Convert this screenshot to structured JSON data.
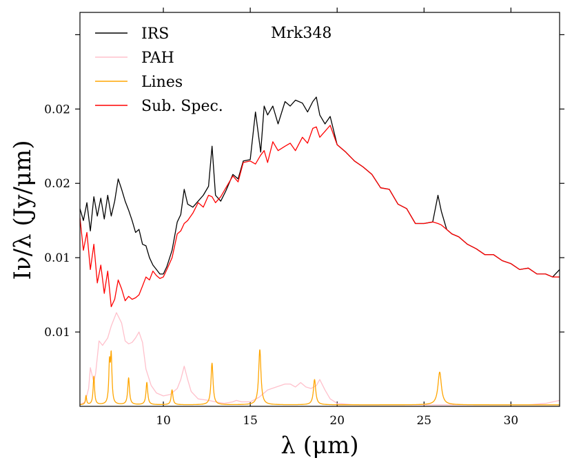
{
  "chart_data": {
    "type": "line",
    "title": "Mrk348",
    "xlabel": "λ (μm)",
    "ylabel": "Iν/λ (Jy/μm)",
    "xlim": [
      5.2,
      32.8
    ],
    "ylim": [
      0.0,
      0.0265
    ],
    "xticks": [
      10,
      15,
      20,
      25,
      30
    ],
    "xtick_labels": [
      "10",
      "15",
      "20",
      "25",
      "30"
    ],
    "yticks": [
      0.005,
      0.01,
      0.015,
      0.02,
      0.025
    ],
    "ytick_labels": [
      "0.01",
      "0.01",
      "0.02",
      "0.02"
    ],
    "ytick_label_values": [
      0.005,
      0.01,
      0.015,
      0.02
    ],
    "legend": {
      "position": "top-left",
      "entries": [
        "IRS",
        "PAH",
        "Lines",
        "Sub. Spec."
      ]
    },
    "colors": {
      "IRS": "#000000",
      "PAH": "#ffc0cb",
      "Lines": "#ffa500",
      "Sub. Spec.": "#ff0000"
    },
    "series": [
      {
        "name": "IRS",
        "x": [
          5.2,
          5.4,
          5.6,
          5.8,
          6.0,
          6.2,
          6.4,
          6.6,
          6.8,
          7.0,
          7.2,
          7.4,
          7.6,
          7.8,
          8.0,
          8.2,
          8.4,
          8.6,
          8.8,
          9.0,
          9.2,
          9.4,
          9.6,
          9.8,
          10.0,
          10.2,
          10.5,
          10.8,
          11.0,
          11.2,
          11.4,
          11.7,
          12.0,
          12.3,
          12.6,
          12.8,
          13.0,
          13.3,
          13.6,
          14.0,
          14.3,
          14.6,
          15.0,
          15.3,
          15.6,
          15.8,
          16.0,
          16.3,
          16.6,
          17.0,
          17.3,
          17.6,
          18.0,
          18.3,
          18.6,
          18.8,
          19.0,
          19.3,
          19.6,
          20.0,
          20.5,
          21.0,
          21.5,
          22.0,
          22.5,
          23.0,
          23.5,
          24.0,
          24.5,
          25.0,
          25.5,
          25.8,
          26.0,
          26.3,
          26.6,
          27.0,
          27.5,
          28.0,
          28.5,
          29.0,
          29.5,
          30.0,
          30.5,
          31.0,
          31.5,
          32.0,
          32.4,
          32.8
        ],
        "values": [
          0.0133,
          0.0125,
          0.0137,
          0.0118,
          0.0141,
          0.0128,
          0.014,
          0.0126,
          0.0142,
          0.0128,
          0.0138,
          0.0153,
          0.0146,
          0.0138,
          0.0132,
          0.0125,
          0.0117,
          0.0119,
          0.0109,
          0.0108,
          0.01,
          0.0095,
          0.0092,
          0.0089,
          0.0089,
          0.0094,
          0.0105,
          0.0124,
          0.0129,
          0.0146,
          0.0136,
          0.0134,
          0.0138,
          0.0142,
          0.0148,
          0.0175,
          0.0142,
          0.0138,
          0.0145,
          0.0156,
          0.0153,
          0.0165,
          0.0166,
          0.0198,
          0.0171,
          0.0202,
          0.0196,
          0.0202,
          0.019,
          0.0205,
          0.0202,
          0.0206,
          0.0204,
          0.0198,
          0.0205,
          0.0208,
          0.0196,
          0.019,
          0.0195,
          0.0176,
          0.0171,
          0.0165,
          0.0161,
          0.0156,
          0.0147,
          0.0146,
          0.0136,
          0.0133,
          0.0123,
          0.0123,
          0.0124,
          0.0142,
          0.0131,
          0.0119,
          0.0116,
          0.0114,
          0.0109,
          0.0106,
          0.0102,
          0.0102,
          0.0098,
          0.0096,
          0.0092,
          0.0093,
          0.0089,
          0.0089,
          0.0087,
          0.0092
        ]
      },
      {
        "name": "Sub. Spec.",
        "x": [
          5.2,
          5.4,
          5.6,
          5.8,
          6.0,
          6.2,
          6.4,
          6.6,
          6.8,
          7.0,
          7.2,
          7.4,
          7.6,
          7.8,
          8.0,
          8.2,
          8.4,
          8.6,
          8.8,
          9.0,
          9.2,
          9.4,
          9.6,
          9.8,
          10.0,
          10.2,
          10.5,
          10.8,
          11.0,
          11.2,
          11.4,
          11.7,
          12.0,
          12.3,
          12.6,
          12.8,
          13.0,
          13.3,
          13.6,
          14.0,
          14.3,
          14.6,
          15.0,
          15.3,
          15.6,
          15.8,
          16.0,
          16.3,
          16.6,
          17.0,
          17.3,
          17.6,
          18.0,
          18.3,
          18.6,
          18.8,
          19.0,
          19.3,
          19.6,
          20.0,
          20.5,
          21.0,
          21.5,
          22.0,
          22.5,
          23.0,
          23.5,
          24.0,
          24.5,
          25.0,
          25.5,
          25.8,
          26.0,
          26.3,
          26.6,
          27.0,
          27.5,
          28.0,
          28.5,
          29.0,
          29.5,
          30.0,
          30.5,
          31.0,
          31.5,
          32.0,
          32.4,
          32.8
        ],
        "values": [
          0.0127,
          0.0105,
          0.0117,
          0.0092,
          0.0109,
          0.0083,
          0.0095,
          0.0076,
          0.0091,
          0.0067,
          0.0072,
          0.0085,
          0.0079,
          0.0071,
          0.0074,
          0.0072,
          0.0073,
          0.0075,
          0.0081,
          0.0087,
          0.0085,
          0.0091,
          0.0088,
          0.0086,
          0.0087,
          0.0092,
          0.01,
          0.0116,
          0.0118,
          0.0123,
          0.0125,
          0.013,
          0.0137,
          0.0134,
          0.0142,
          0.0141,
          0.0137,
          0.0141,
          0.0147,
          0.0155,
          0.0151,
          0.0164,
          0.0165,
          0.0163,
          0.0169,
          0.0172,
          0.0164,
          0.0178,
          0.0172,
          0.0175,
          0.0177,
          0.0172,
          0.0181,
          0.0177,
          0.0187,
          0.0188,
          0.0181,
          0.0185,
          0.0189,
          0.0176,
          0.0171,
          0.0165,
          0.0161,
          0.0156,
          0.0147,
          0.0146,
          0.0136,
          0.0133,
          0.0123,
          0.0123,
          0.0124,
          0.0123,
          0.0122,
          0.0119,
          0.0116,
          0.0114,
          0.0109,
          0.0106,
          0.0102,
          0.0102,
          0.0098,
          0.0096,
          0.0092,
          0.0093,
          0.0089,
          0.0089,
          0.0087,
          0.0087
        ]
      },
      {
        "name": "PAH",
        "x": [
          5.2,
          5.5,
          5.7,
          5.8,
          6.0,
          6.1,
          6.2,
          6.3,
          6.5,
          6.8,
          7.0,
          7.3,
          7.6,
          7.8,
          8.0,
          8.2,
          8.4,
          8.6,
          8.8,
          9.0,
          9.3,
          9.6,
          10.0,
          10.4,
          10.8,
          11.0,
          11.2,
          11.4,
          11.6,
          12.0,
          12.6,
          13.0,
          13.5,
          14.0,
          14.2,
          14.5,
          15.0,
          15.5,
          16.0,
          16.5,
          17.0,
          17.3,
          17.6,
          17.9,
          18.2,
          18.5,
          18.8,
          19.0,
          19.3,
          19.6,
          20.0,
          21.0,
          22.0,
          23.0,
          24.0,
          25.0,
          26.0,
          27.0,
          28.0,
          29.0,
          30.0,
          31.0,
          32.0,
          32.8
        ],
        "values": [
          0.0001,
          0.0003,
          0.0012,
          0.0026,
          0.0016,
          0.0022,
          0.0033,
          0.0044,
          0.0041,
          0.0046,
          0.0054,
          0.0063,
          0.0056,
          0.0044,
          0.0042,
          0.0043,
          0.0046,
          0.005,
          0.0043,
          0.0025,
          0.0014,
          0.0009,
          0.0007,
          0.0008,
          0.0012,
          0.0018,
          0.0027,
          0.0018,
          0.001,
          0.0005,
          0.0004,
          0.0003,
          0.0002,
          0.0003,
          0.0004,
          0.0003,
          0.0003,
          0.0006,
          0.0011,
          0.0013,
          0.0015,
          0.0015,
          0.0013,
          0.0016,
          0.0013,
          0.0012,
          0.0014,
          0.0018,
          0.0011,
          0.0005,
          0.0002,
          0.0001,
          0.0001,
          0.0001,
          0.0001,
          0.0001,
          0.0001,
          0.0001,
          0.0001,
          0.0001,
          0.0001,
          0.0001,
          0.0002,
          0.0004
        ]
      },
      {
        "name": "Lines",
        "peaks": [
          {
            "center": 5.55,
            "height": 0.0006,
            "width": 0.04
          },
          {
            "center": 6.0,
            "height": 0.0019,
            "width": 0.05
          },
          {
            "center": 6.9,
            "height": 0.0026,
            "width": 0.05
          },
          {
            "center": 7.0,
            "height": 0.0031,
            "width": 0.05
          },
          {
            "center": 8.0,
            "height": 0.0018,
            "width": 0.06
          },
          {
            "center": 9.05,
            "height": 0.0015,
            "width": 0.06
          },
          {
            "center": 10.5,
            "height": 0.001,
            "width": 0.06
          },
          {
            "center": 12.8,
            "height": 0.0028,
            "width": 0.07
          },
          {
            "center": 15.55,
            "height": 0.0037,
            "width": 0.08
          },
          {
            "center": 18.7,
            "height": 0.0017,
            "width": 0.08
          },
          {
            "center": 25.9,
            "height": 0.0022,
            "width": 0.12
          }
        ],
        "baseline": 0.0001
      }
    ]
  }
}
